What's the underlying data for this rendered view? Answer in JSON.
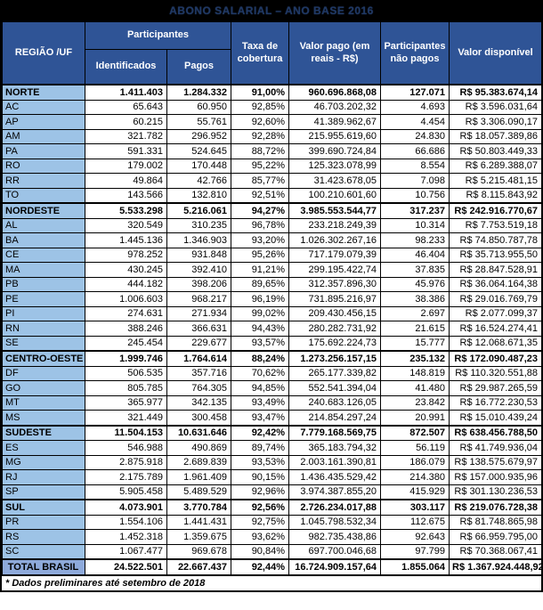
{
  "title": "ABONO SALARIAL – ANO BASE 2016",
  "colors": {
    "header_bg": "#2F5496",
    "header_text": "#FFFFFF",
    "uf_cell_bg": "#9DC3E6",
    "total_cell_bg": "#8EAADB",
    "title_bg": "#000000",
    "border": "#000000"
  },
  "table": {
    "headers": {
      "region": "REGIÃO /UF",
      "participantes_group": "Participantes",
      "identificados": "Identificados",
      "pagos": "Pagos",
      "taxa": "Taxa de cobertura",
      "valor_pago": "Valor pago (em reais - R$)",
      "nao_pagos": "Participantes não pagos",
      "valor_disponivel": "Valor disponível"
    },
    "rows": [
      {
        "type": "region",
        "label": "NORTE",
        "identificados": "1.411.403",
        "pagos": "1.284.332",
        "taxa": "91,00%",
        "valor_pago": "960.696.868,08",
        "nao_pagos": "127.071",
        "valor_disponivel": "R$ 95.383.674,14"
      },
      {
        "type": "uf",
        "label": "AC",
        "identificados": "65.643",
        "pagos": "60.950",
        "taxa": "92,85%",
        "valor_pago": "46.703.202,32",
        "nao_pagos": "4.693",
        "valor_disponivel": "R$ 3.596.031,64"
      },
      {
        "type": "uf",
        "label": "AP",
        "identificados": "60.215",
        "pagos": "55.761",
        "taxa": "92,60%",
        "valor_pago": "41.389.962,67",
        "nao_pagos": "4.454",
        "valor_disponivel": "R$ 3.306.090,17"
      },
      {
        "type": "uf",
        "label": "AM",
        "identificados": "321.782",
        "pagos": "296.952",
        "taxa": "92,28%",
        "valor_pago": "215.955.619,60",
        "nao_pagos": "24.830",
        "valor_disponivel": "R$ 18.057.389,86"
      },
      {
        "type": "uf",
        "label": "PA",
        "identificados": "591.331",
        "pagos": "524.645",
        "taxa": "88,72%",
        "valor_pago": "399.690.724,84",
        "nao_pagos": "66.686",
        "valor_disponivel": "R$ 50.803.449,33"
      },
      {
        "type": "uf",
        "label": "RO",
        "identificados": "179.002",
        "pagos": "170.448",
        "taxa": "95,22%",
        "valor_pago": "125.323.078,99",
        "nao_pagos": "8.554",
        "valor_disponivel": "R$ 6.289.388,07"
      },
      {
        "type": "uf",
        "label": "RR",
        "identificados": "49.864",
        "pagos": "42.766",
        "taxa": "85,77%",
        "valor_pago": "31.423.678,05",
        "nao_pagos": "7.098",
        "valor_disponivel": "R$ 5.215.481,15"
      },
      {
        "type": "uf",
        "label": "TO",
        "identificados": "143.566",
        "pagos": "132.810",
        "taxa": "92,51%",
        "valor_pago": "100.210.601,60",
        "nao_pagos": "10.756",
        "valor_disponivel": "R$ 8.115.843,92"
      },
      {
        "type": "region",
        "label": "NORDESTE",
        "identificados": "5.533.298",
        "pagos": "5.216.061",
        "taxa": "94,27%",
        "valor_pago": "3.985.553.544,77",
        "nao_pagos": "317.237",
        "valor_disponivel": "R$ 242.916.770,67"
      },
      {
        "type": "uf",
        "label": "AL",
        "identificados": "320.549",
        "pagos": "310.235",
        "taxa": "96,78%",
        "valor_pago": "233.218.249,39",
        "nao_pagos": "10.314",
        "valor_disponivel": "R$ 7.753.519,18"
      },
      {
        "type": "uf",
        "label": "BA",
        "identificados": "1.445.136",
        "pagos": "1.346.903",
        "taxa": "93,20%",
        "valor_pago": "1.026.302.267,16",
        "nao_pagos": "98.233",
        "valor_disponivel": "R$ 74.850.787,78"
      },
      {
        "type": "uf",
        "label": "CE",
        "identificados": "978.252",
        "pagos": "931.848",
        "taxa": "95,26%",
        "valor_pago": "717.179.079,39",
        "nao_pagos": "46.404",
        "valor_disponivel": "R$ 35.713.955,50"
      },
      {
        "type": "uf",
        "label": "MA",
        "identificados": "430.245",
        "pagos": "392.410",
        "taxa": "91,21%",
        "valor_pago": "299.195.422,74",
        "nao_pagos": "37.835",
        "valor_disponivel": "R$ 28.847.528,91"
      },
      {
        "type": "uf",
        "label": "PB",
        "identificados": "444.182",
        "pagos": "398.206",
        "taxa": "89,65%",
        "valor_pago": "312.357.896,30",
        "nao_pagos": "45.976",
        "valor_disponivel": "R$ 36.064.164,38"
      },
      {
        "type": "uf",
        "label": "PE",
        "identificados": "1.006.603",
        "pagos": "968.217",
        "taxa": "96,19%",
        "valor_pago": "731.895.216,97",
        "nao_pagos": "38.386",
        "valor_disponivel": "R$ 29.016.769,79"
      },
      {
        "type": "uf",
        "label": "PI",
        "identificados": "274.631",
        "pagos": "271.934",
        "taxa": "99,02%",
        "valor_pago": "209.430.456,15",
        "nao_pagos": "2.697",
        "valor_disponivel": "R$ 2.077.099,37"
      },
      {
        "type": "uf",
        "label": "RN",
        "identificados": "388.246",
        "pagos": "366.631",
        "taxa": "94,43%",
        "valor_pago": "280.282.731,92",
        "nao_pagos": "21.615",
        "valor_disponivel": "R$ 16.524.274,41"
      },
      {
        "type": "uf",
        "label": "SE",
        "identificados": "245.454",
        "pagos": "229.677",
        "taxa": "93,57%",
        "valor_pago": "175.692.224,73",
        "nao_pagos": "15.777",
        "valor_disponivel": "R$ 12.068.671,35"
      },
      {
        "type": "region",
        "label": "CENTRO-OESTE",
        "identificados": "1.999.746",
        "pagos": "1.764.614",
        "taxa": "88,24%",
        "valor_pago": "1.273.256.157,15",
        "nao_pagos": "235.132",
        "valor_disponivel": "R$ 172.090.487,23"
      },
      {
        "type": "uf",
        "label": "DF",
        "identificados": "506.535",
        "pagos": "357.716",
        "taxa": "70,62%",
        "valor_pago": "265.177.339,82",
        "nao_pagos": "148.819",
        "valor_disponivel": "R$ 110.320.551,88"
      },
      {
        "type": "uf",
        "label": "GO",
        "identificados": "805.785",
        "pagos": "764.305",
        "taxa": "94,85%",
        "valor_pago": "552.541.394,04",
        "nao_pagos": "41.480",
        "valor_disponivel": "R$ 29.987.265,59"
      },
      {
        "type": "uf",
        "label": "MT",
        "identificados": "365.977",
        "pagos": "342.135",
        "taxa": "93,49%",
        "valor_pago": "240.683.126,05",
        "nao_pagos": "23.842",
        "valor_disponivel": "R$ 16.772.230,53"
      },
      {
        "type": "uf",
        "label": "MS",
        "identificados": "321.449",
        "pagos": "300.458",
        "taxa": "93,47%",
        "valor_pago": "214.854.297,24",
        "nao_pagos": "20.991",
        "valor_disponivel": "R$ 15.010.439,24"
      },
      {
        "type": "region",
        "label": "SUDESTE",
        "identificados": "11.504.153",
        "pagos": "10.631.646",
        "taxa": "92,42%",
        "valor_pago": "7.779.168.569,75",
        "nao_pagos": "872.507",
        "valor_disponivel": "R$ 638.456.788,50"
      },
      {
        "type": "uf",
        "label": "ES",
        "identificados": "546.988",
        "pagos": "490.869",
        "taxa": "89,74%",
        "valor_pago": "365.183.794,32",
        "nao_pagos": "56.119",
        "valor_disponivel": "R$ 41.749.936,04"
      },
      {
        "type": "uf",
        "label": "MG",
        "identificados": "2.875.918",
        "pagos": "2.689.839",
        "taxa": "93,53%",
        "valor_pago": "2.003.161.390,81",
        "nao_pagos": "186.079",
        "valor_disponivel": "R$ 138.575.679,97"
      },
      {
        "type": "uf",
        "label": "RJ",
        "identificados": "2.175.789",
        "pagos": "1.961.409",
        "taxa": "90,15%",
        "valor_pago": "1.436.435.529,42",
        "nao_pagos": "214.380",
        "valor_disponivel": "R$ 157.000.935,96"
      },
      {
        "type": "uf",
        "label": "SP",
        "identificados": "5.905.458",
        "pagos": "5.489.529",
        "taxa": "92,96%",
        "valor_pago": "3.974.387.855,20",
        "nao_pagos": "415.929",
        "valor_disponivel": "R$ 301.130.236,53"
      },
      {
        "type": "region",
        "label": "SUL",
        "identificados": "4.073.901",
        "pagos": "3.770.784",
        "taxa": "92,56%",
        "valor_pago": "2.726.234.017,88",
        "nao_pagos": "303.117",
        "valor_disponivel": "R$ 219.076.728,38"
      },
      {
        "type": "uf",
        "label": "PR",
        "identificados": "1.554.106",
        "pagos": "1.441.431",
        "taxa": "92,75%",
        "valor_pago": "1.045.798.532,34",
        "nao_pagos": "112.675",
        "valor_disponivel": "R$ 81.748.865,98"
      },
      {
        "type": "uf",
        "label": "RS",
        "identificados": "1.452.318",
        "pagos": "1.359.675",
        "taxa": "93,62%",
        "valor_pago": "982.735.438,86",
        "nao_pagos": "92.643",
        "valor_disponivel": "R$ 66.959.795,00"
      },
      {
        "type": "uf",
        "label": "SC",
        "identificados": "1.067.477",
        "pagos": "969.678",
        "taxa": "90,84%",
        "valor_pago": "697.700.046,68",
        "nao_pagos": "97.799",
        "valor_disponivel": "R$ 70.368.067,41"
      },
      {
        "type": "total",
        "label": "TOTAL BRASIL",
        "identificados": "24.522.501",
        "pagos": "22.667.437",
        "taxa": "92,44%",
        "valor_pago": "16.724.909.157,64",
        "nao_pagos": "1.855.064",
        "valor_disponivel": "R$ 1.367.924.448,92"
      }
    ],
    "footnote": "* Dados preliminares até setembro de 2018"
  }
}
